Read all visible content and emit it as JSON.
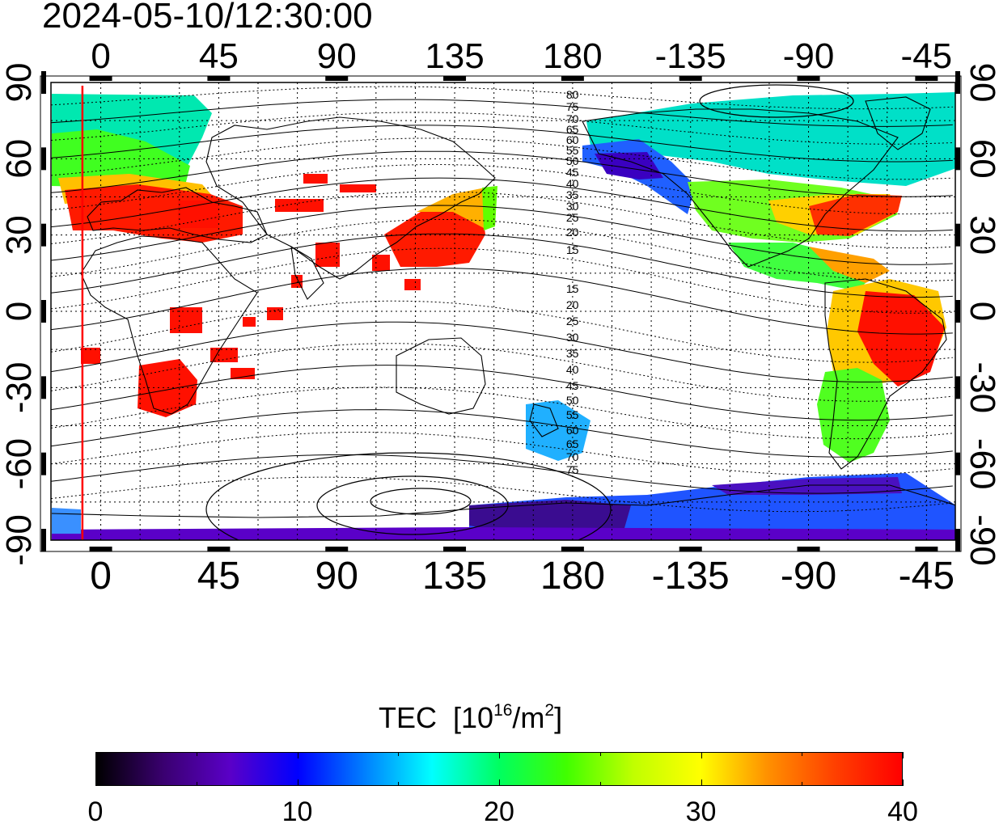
{
  "timestamp": "2024-05-10/12:30:00",
  "map": {
    "lon_ticks": [
      "0",
      "45",
      "90",
      "135",
      "180",
      "-135",
      "-90",
      "-45"
    ],
    "lon_values": [
      0,
      45,
      90,
      135,
      180,
      225,
      270,
      315
    ],
    "lat_ticks": [
      "90",
      "60",
      "30",
      "0",
      "-30",
      "-60",
      "-90"
    ],
    "lat_values": [
      90,
      60,
      30,
      0,
      -30,
      -60,
      -90
    ],
    "lon_range": [
      -19,
      326
    ],
    "lat_range": [
      -90,
      90
    ],
    "marker_longitude": -7,
    "marker_color": "#ff0000",
    "contour_labels": [
      "80",
      "75",
      "70",
      "65",
      "60",
      "55",
      "50",
      "45",
      "40",
      "35",
      "30",
      "25",
      "20",
      "15",
      "15",
      "20",
      "25",
      "30",
      "35",
      "40",
      "45",
      "50",
      "55",
      "60",
      "65",
      "70",
      "75"
    ]
  },
  "colorbar": {
    "title": "TEC",
    "unit_base": "[10",
    "unit_exp": "16",
    "unit_mid": "/m",
    "unit_exp2": "2",
    "unit_end": "]",
    "ticks": [
      "0",
      "10",
      "20",
      "30",
      "40"
    ],
    "tick_values": [
      0,
      10,
      20,
      30,
      40
    ],
    "range": [
      0,
      40
    ],
    "colors": [
      "#000000",
      "#3a0070",
      "#5a00c8",
      "#0000ff",
      "#0080ff",
      "#00ffff",
      "#00ff60",
      "#40ff00",
      "#c0ff00",
      "#ffff00",
      "#ff9000",
      "#ff4000",
      "#ff0000"
    ]
  }
}
